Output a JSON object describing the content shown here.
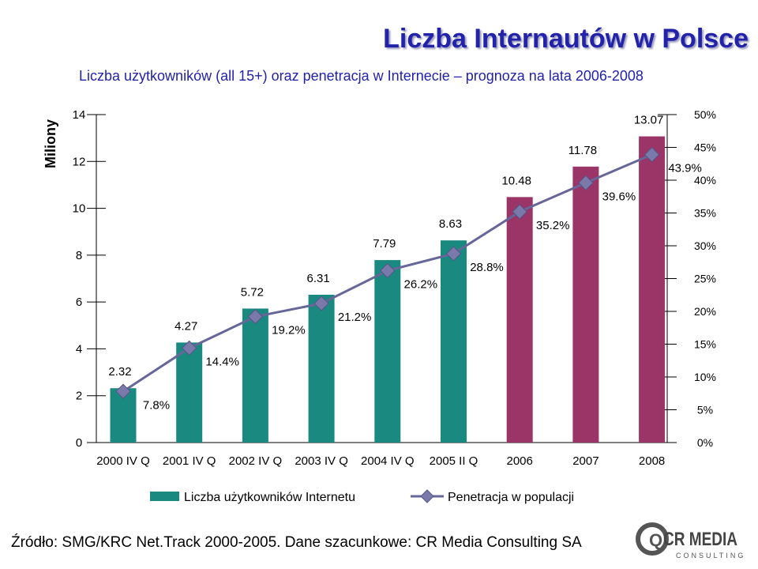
{
  "header": {
    "title": "Liczba Internautów w Polsce",
    "subtitle": "Liczba użytkowników (all 15+) oraz penetracja w Internecie – prognoza na lata 2006-2008"
  },
  "footer": {
    "source": "Źródło:  SMG/KRC Net.Track 2000-2005.  Dane szacunkowe: CR Media Consulting SA"
  },
  "logo": {
    "text_main": "CR MEDIA",
    "text_sub": "CONSULTING",
    "mark": "Q"
  },
  "colors": {
    "bar_actual": "#1a8a80",
    "bar_forecast": "#9b3568",
    "line": "#666699",
    "marker": "#7a7aaa",
    "title": "#2222aa"
  },
  "chart_data": {
    "type": "bar+line",
    "categories": [
      "2000 IV Q",
      "2001 IV Q",
      "2002 IV Q",
      "2003 IV Q",
      "2004 IV Q",
      "2005 II Q",
      "2006",
      "2007",
      "2008"
    ],
    "series": [
      {
        "name": "Liczba użytkowników Internetu",
        "type": "bar",
        "axis": "left",
        "values": [
          2.32,
          4.27,
          5.72,
          6.31,
          7.79,
          8.63,
          10.48,
          11.78,
          13.07
        ],
        "labels": [
          "2.32",
          "4.27",
          "5.72",
          "6.31",
          "7.79",
          "8.63",
          "10.48",
          "11.78",
          "13.07"
        ],
        "forecast_from_index": 6
      },
      {
        "name": "Penetracja w populacji",
        "type": "line",
        "axis": "right",
        "values": [
          7.8,
          14.4,
          19.2,
          21.2,
          26.2,
          28.8,
          35.2,
          39.6,
          43.9
        ],
        "labels": [
          "7.8%",
          "14.4%",
          "19.2%",
          "21.2%",
          "26.2%",
          "28.8%",
          "35.2%",
          "39.6%",
          "43.9%"
        ]
      }
    ],
    "y_left": {
      "label": "Miliony",
      "min": 0,
      "max": 14,
      "ticks": [
        "0",
        "2",
        "4",
        "6",
        "8",
        "10",
        "12",
        "14"
      ]
    },
    "y_right": {
      "min": 0,
      "max": 50,
      "ticks": [
        "0%",
        "5%",
        "10%",
        "15%",
        "20%",
        "25%",
        "30%",
        "35%",
        "40%",
        "45%",
        "50%"
      ]
    },
    "legend": {
      "position": "bottom",
      "items": [
        "Liczba użytkowników Internetu",
        "Penetracja w populacji"
      ]
    },
    "grid": false
  }
}
